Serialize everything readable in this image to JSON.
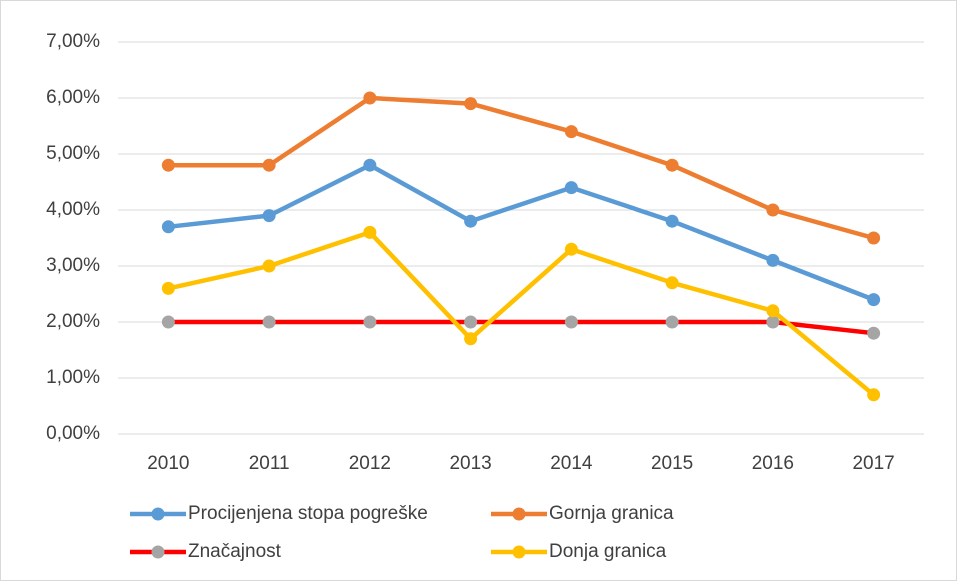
{
  "chart_data": {
    "type": "line",
    "categories": [
      "2010",
      "2011",
      "2012",
      "2013",
      "2014",
      "2015",
      "2016",
      "2017"
    ],
    "series": [
      {
        "name": "Procijenjena stopa pogreške",
        "color": "#5b9bd5",
        "values": [
          3.7,
          3.9,
          4.8,
          3.8,
          4.4,
          3.8,
          3.1,
          2.4
        ]
      },
      {
        "name": "Gornja granica",
        "color": "#ed7d31",
        "values": [
          4.8,
          4.8,
          6.0,
          5.9,
          5.4,
          4.8,
          4.0,
          3.5
        ]
      },
      {
        "name": "Značajnost",
        "color": "#ff0000",
        "marker_color": "#a5a5a5",
        "values": [
          2.0,
          2.0,
          2.0,
          2.0,
          2.0,
          2.0,
          2.0,
          1.8
        ]
      },
      {
        "name": "Donja granica",
        "color": "#ffc000",
        "values": [
          2.6,
          3.0,
          3.6,
          1.7,
          3.3,
          2.7,
          2.2,
          0.7
        ]
      }
    ],
    "ylim": [
      0,
      7
    ],
    "yticks": [
      {
        "value": 0,
        "label": "0,00%"
      },
      {
        "value": 1,
        "label": "1,00%"
      },
      {
        "value": 2,
        "label": "2,00%"
      },
      {
        "value": 3,
        "label": "3,00%"
      },
      {
        "value": 4,
        "label": "4,00%"
      },
      {
        "value": 5,
        "label": "5,00%"
      },
      {
        "value": 6,
        "label": "6,00%"
      },
      {
        "value": 7,
        "label": "7,00%"
      }
    ],
    "grid": true
  }
}
